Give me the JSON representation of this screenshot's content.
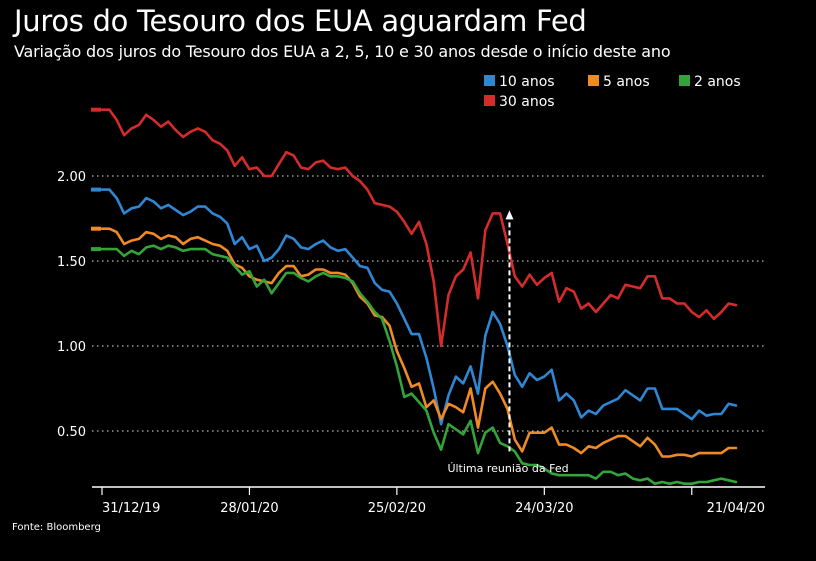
{
  "title": "Juros do Tesouro dos EUA aguardam Fed",
  "subtitle": "Variação dos juros do Tesouro dos EUA a 2, 5, 10 e 30 anos desde o início deste ano",
  "source": "Fonte: Bloomberg",
  "colors": {
    "background": "#000000",
    "grid": "#ffffff",
    "text": "#ffffff"
  },
  "chart_data": {
    "type": "line",
    "title": "Juros do Tesouro dos EUA aguardam Fed",
    "subtitle": "Variação dos juros do Tesouro dos EUA a 2, 5, 10 e 30 anos desde o início deste ano",
    "x_tick_labels": [
      "31/12/19",
      "28/01/20",
      "25/02/20",
      "24/03/20",
      "21/04/20"
    ],
    "x_tick_index": [
      0,
      20,
      40,
      60,
      80
    ],
    "y_ticks": [
      0.5,
      1.0,
      1.5,
      2.0
    ],
    "y_tick_labels": [
      "0.50",
      "1.00",
      "1.50",
      "2.00"
    ],
    "ylim": [
      0.2,
      2.45
    ],
    "grid": "horizontal dotted",
    "legend": "top-right",
    "annotation": {
      "text": "Última reunião da Fed",
      "x_index": 55,
      "y_from": 0.38,
      "y_to": 1.78
    },
    "series": [
      {
        "name": "30 anos",
        "color": "#d42b2b",
        "values": [
          2.39,
          2.39,
          2.33,
          2.24,
          2.28,
          2.3,
          2.36,
          2.33,
          2.29,
          2.32,
          2.27,
          2.23,
          2.26,
          2.28,
          2.26,
          2.21,
          2.19,
          2.15,
          2.06,
          2.11,
          2.04,
          2.05,
          2.0,
          2.0,
          2.07,
          2.14,
          2.12,
          2.05,
          2.04,
          2.08,
          2.09,
          2.05,
          2.04,
          2.05,
          2.0,
          1.97,
          1.92,
          1.84,
          1.83,
          1.82,
          1.79,
          1.73,
          1.66,
          1.73,
          1.6,
          1.38,
          1.0,
          1.3,
          1.41,
          1.45,
          1.55,
          1.28,
          1.68,
          1.78,
          1.78,
          1.6,
          1.41,
          1.35,
          1.42,
          1.36,
          1.4,
          1.43,
          1.26,
          1.34,
          1.32,
          1.22,
          1.25,
          1.2,
          1.25,
          1.3,
          1.28,
          1.36,
          1.35,
          1.34,
          1.41,
          1.41,
          1.28,
          1.28,
          1.25,
          1.25,
          1.2,
          1.17,
          1.21,
          1.16,
          1.2,
          1.25,
          1.24
        ]
      },
      {
        "name": "10 anos",
        "color": "#2f86d2",
        "values": [
          1.92,
          1.92,
          1.87,
          1.78,
          1.81,
          1.82,
          1.87,
          1.85,
          1.81,
          1.83,
          1.8,
          1.77,
          1.79,
          1.82,
          1.82,
          1.78,
          1.76,
          1.72,
          1.6,
          1.64,
          1.57,
          1.59,
          1.5,
          1.52,
          1.57,
          1.65,
          1.63,
          1.58,
          1.57,
          1.6,
          1.62,
          1.58,
          1.56,
          1.57,
          1.52,
          1.47,
          1.46,
          1.37,
          1.33,
          1.32,
          1.25,
          1.16,
          1.07,
          1.07,
          0.93,
          0.75,
          0.54,
          0.71,
          0.82,
          0.78,
          0.88,
          0.72,
          1.06,
          1.2,
          1.13,
          1.0,
          0.83,
          0.76,
          0.84,
          0.8,
          0.82,
          0.86,
          0.68,
          0.72,
          0.68,
          0.58,
          0.62,
          0.6,
          0.65,
          0.67,
          0.69,
          0.74,
          0.71,
          0.68,
          0.75,
          0.75,
          0.63,
          0.63,
          0.63,
          0.6,
          0.57,
          0.62,
          0.59,
          0.6,
          0.6,
          0.66,
          0.65
        ]
      },
      {
        "name": "5 anos",
        "color": "#f08a24",
        "values": [
          1.69,
          1.69,
          1.67,
          1.6,
          1.62,
          1.63,
          1.67,
          1.66,
          1.63,
          1.65,
          1.64,
          1.6,
          1.63,
          1.64,
          1.62,
          1.6,
          1.59,
          1.56,
          1.48,
          1.46,
          1.41,
          1.39,
          1.38,
          1.37,
          1.43,
          1.47,
          1.47,
          1.41,
          1.42,
          1.45,
          1.45,
          1.43,
          1.43,
          1.42,
          1.37,
          1.29,
          1.25,
          1.18,
          1.17,
          1.12,
          0.97,
          0.87,
          0.76,
          0.78,
          0.64,
          0.68,
          0.57,
          0.66,
          0.64,
          0.61,
          0.75,
          0.52,
          0.75,
          0.79,
          0.72,
          0.63,
          0.45,
          0.38,
          0.49,
          0.49,
          0.49,
          0.52,
          0.42,
          0.42,
          0.4,
          0.37,
          0.41,
          0.4,
          0.43,
          0.45,
          0.47,
          0.47,
          0.44,
          0.41,
          0.46,
          0.42,
          0.35,
          0.35,
          0.36,
          0.36,
          0.35,
          0.37,
          0.37,
          0.37,
          0.37,
          0.4,
          0.4
        ]
      },
      {
        "name": "2 anos",
        "color": "#34a33a",
        "values": [
          1.57,
          1.57,
          1.57,
          1.53,
          1.56,
          1.54,
          1.58,
          1.59,
          1.57,
          1.59,
          1.58,
          1.56,
          1.57,
          1.57,
          1.57,
          1.54,
          1.53,
          1.52,
          1.47,
          1.42,
          1.44,
          1.35,
          1.39,
          1.31,
          1.37,
          1.43,
          1.43,
          1.4,
          1.38,
          1.41,
          1.43,
          1.41,
          1.41,
          1.4,
          1.38,
          1.31,
          1.26,
          1.2,
          1.16,
          1.03,
          0.88,
          0.7,
          0.72,
          0.67,
          0.62,
          0.49,
          0.39,
          0.54,
          0.51,
          0.48,
          0.56,
          0.37,
          0.49,
          0.52,
          0.43,
          0.41,
          0.38,
          0.31,
          0.3,
          0.3,
          0.28,
          0.25,
          0.24,
          0.24,
          0.24,
          0.24,
          0.24,
          0.22,
          0.26,
          0.26,
          0.24,
          0.25,
          0.22,
          0.21,
          0.22,
          0.19,
          0.2,
          0.19,
          0.2,
          0.19,
          0.19,
          0.2,
          0.2,
          0.21,
          0.22,
          0.21,
          0.2
        ]
      }
    ]
  },
  "legend": {
    "rows": [
      [
        {
          "label": "10 anos",
          "color": "#2f86d2"
        },
        {
          "label": "5 anos",
          "color": "#f08a24"
        },
        {
          "label": "2 anos",
          "color": "#34a33a"
        }
      ],
      [
        {
          "label": "30 anos",
          "color": "#d42b2b"
        }
      ]
    ]
  }
}
